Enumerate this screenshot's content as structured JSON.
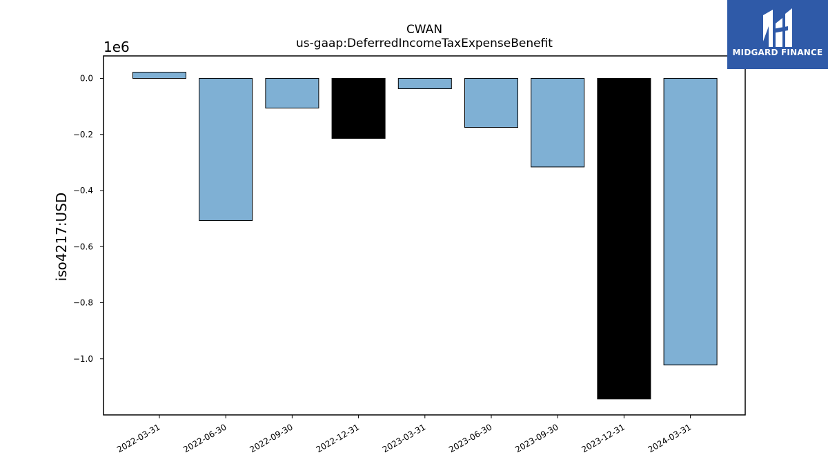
{
  "chart_data": {
    "type": "bar",
    "title": "CWAN",
    "subtitle": "us-gaap:DeferredIncomeTaxExpenseBenefit",
    "xlabel": "",
    "ylabel": "iso4217:USD",
    "y_offset_label": "1e6",
    "ylim": [
      -1.2,
      0.08
    ],
    "y_ticks": [
      0.0,
      -0.2,
      -0.4,
      -0.6,
      -0.8,
      -1.0
    ],
    "y_tick_labels": [
      "0.0",
      "−0.2",
      "−0.4",
      "−0.6",
      "−0.8",
      "−1.0"
    ],
    "categories": [
      "2022-03-31",
      "2022-06-30",
      "2022-09-30",
      "2022-12-31",
      "2023-03-31",
      "2023-06-30",
      "2023-09-30",
      "2023-12-31",
      "2024-03-31"
    ],
    "values": [
      0.022,
      -0.507,
      -0.106,
      -0.214,
      -0.037,
      -0.175,
      -0.316,
      -1.143,
      -1.022
    ],
    "bar_colors": [
      "#7fb0d4",
      "#7fb0d4",
      "#7fb0d4",
      "#000000",
      "#7fb0d4",
      "#7fb0d4",
      "#7fb0d4",
      "#000000",
      "#7fb0d4"
    ],
    "grid": false,
    "legend": "none"
  },
  "logo": {
    "text": "MIDGARD FINANCE",
    "icon": "midgard-logo-icon",
    "background": "#2f5aa8"
  }
}
